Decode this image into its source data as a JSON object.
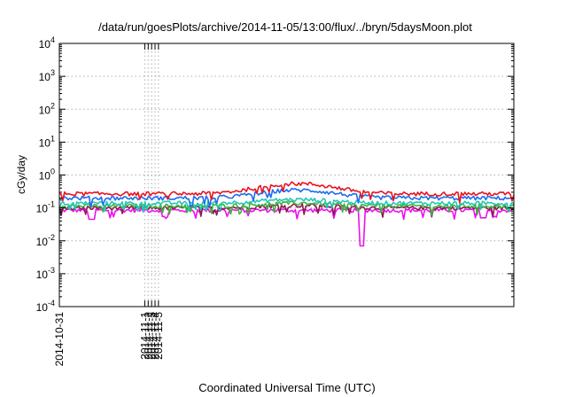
{
  "chart_data": {
    "type": "line",
    "title": "/data/run/goesPlots/archive/2014-11-05/13:00/flux/../bryn/5daysMoon.plot",
    "xlabel": "Coordinated Universal Time (UTC)",
    "ylabel": "cGy/day",
    "y_scale": "log",
    "ylim": [
      0.0001,
      10000
    ],
    "y_ticks": [
      {
        "base": "10",
        "exp": "-4"
      },
      {
        "base": "10",
        "exp": "-3"
      },
      {
        "base": "10",
        "exp": "-2"
      },
      {
        "base": "10",
        "exp": "-1"
      },
      {
        "base": "10",
        "exp": "0"
      },
      {
        "base": "10",
        "exp": "1"
      },
      {
        "base": "10",
        "exp": "2"
      },
      {
        "base": "10",
        "exp": "3"
      },
      {
        "base": "10",
        "exp": "4"
      }
    ],
    "xlim": [
      "2014-10-31T00:00",
      "2014-11-05T13:00"
    ],
    "x_ticks": [
      "2014-10-31",
      "2014-11-1",
      "2014-11-2",
      "2014-11-3",
      "2014-11-4",
      "2014-11-5"
    ],
    "grid": true,
    "legend": "none",
    "series": [
      {
        "color": "#e8141e",
        "approx_level": 0.27,
        "peak": {
          "x": "2014-11-02T21:30",
          "y": 0.55
        }
      },
      {
        "color": "#1e6cf0",
        "approx_level": 0.2,
        "peak": {
          "x": "2014-11-02T21:30",
          "y": 0.35
        }
      },
      {
        "color": "#22c8b4",
        "approx_level": 0.14,
        "peak": {
          "x": "2014-11-02T21:30",
          "y": 0.18
        }
      },
      {
        "color": "#3cb43c",
        "approx_level": 0.115,
        "peak": {
          "x": "2014-11-02T21:30",
          "y": 0.14
        }
      },
      {
        "color": "#8c1a50",
        "approx_level": 0.1,
        "peak": {
          "x": "2014-11-02T21:30",
          "y": 0.12
        }
      },
      {
        "color": "#ee10ee",
        "approx_level": 0.085,
        "dips": [
          {
            "x": "2014-10-31T09:30",
            "y": 0.045
          },
          {
            "x": "2014-11-01T07:00",
            "y": 0.055
          },
          {
            "x": "2014-11-03T16:30",
            "y": 0.007
          },
          {
            "x": "2014-11-05T04:00",
            "y": 0.05
          }
        ]
      }
    ]
  }
}
